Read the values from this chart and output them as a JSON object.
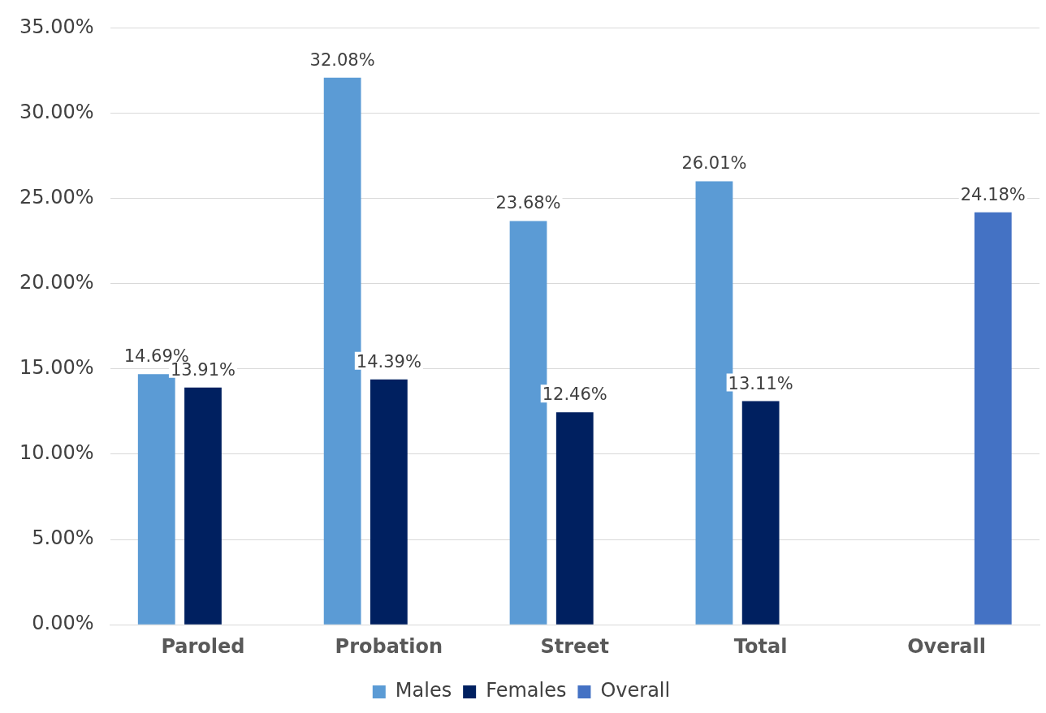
{
  "chart_data": {
    "type": "bar",
    "categories": [
      "Paroled",
      "Probation",
      "Street",
      "Total",
      "Overall"
    ],
    "series": [
      {
        "name": "Males",
        "color": "#5b9bd5",
        "values": [
          14.69,
          32.08,
          23.68,
          26.01,
          null
        ],
        "value_labels": [
          "14.69%",
          "32.08%",
          "23.68%",
          "26.01%",
          null
        ]
      },
      {
        "name": "Females",
        "color": "#002060",
        "values": [
          13.91,
          14.39,
          12.46,
          13.11,
          null
        ],
        "value_labels": [
          "13.91%",
          "14.39%",
          "12.46%",
          "13.11%",
          null
        ]
      },
      {
        "name": "Overall",
        "color": "#4472c4",
        "values": [
          null,
          null,
          null,
          null,
          24.18
        ],
        "value_labels": [
          null,
          null,
          null,
          null,
          "24.18%"
        ]
      }
    ],
    "ylim": [
      0,
      35
    ],
    "yticks": [
      {
        "value": 0,
        "label": "0.00%"
      },
      {
        "value": 5,
        "label": "5.00%"
      },
      {
        "value": 10,
        "label": "10.00%"
      },
      {
        "value": 15,
        "label": "15.00%"
      },
      {
        "value": 20,
        "label": "20.00%"
      },
      {
        "value": 25,
        "label": "25.00%"
      },
      {
        "value": 30,
        "label": "30.00%"
      },
      {
        "value": 35,
        "label": "35.00%"
      }
    ],
    "grid": "y",
    "legend": "bottom"
  }
}
